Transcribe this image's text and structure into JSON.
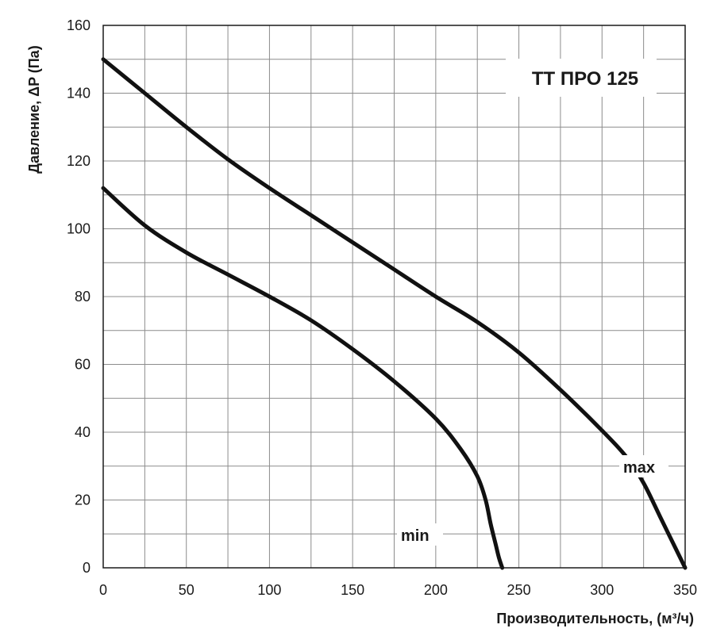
{
  "chart_data": {
    "type": "line",
    "title": "TT ПРО 125",
    "xlabel": "Производительность, (м³/ч)",
    "ylabel": "Давление, ΔP (Па)",
    "xlim": [
      0,
      350
    ],
    "ylim": [
      0,
      160
    ],
    "x_ticks": [
      0,
      50,
      100,
      150,
      200,
      250,
      300,
      350
    ],
    "y_ticks": [
      0,
      20,
      40,
      60,
      80,
      100,
      120,
      140,
      160
    ],
    "grid": true,
    "series": [
      {
        "name": "max",
        "x": [
          0,
          25,
          50,
          75,
          100,
          125,
          150,
          175,
          200,
          225,
          250,
          275,
          300,
          315,
          325,
          335,
          345,
          350
        ],
        "y": [
          150,
          140,
          130,
          120.5,
          112,
          104,
          96,
          88,
          80,
          72.5,
          63.5,
          52.5,
          40.5,
          32.5,
          25,
          15,
          5,
          0
        ]
      },
      {
        "name": "min",
        "x": [
          0,
          25,
          50,
          75,
          100,
          125,
          150,
          175,
          200,
          215,
          225,
          230,
          233,
          236,
          238,
          240
        ],
        "y": [
          112,
          101,
          93,
          86.5,
          80,
          73,
          64.5,
          55,
          44,
          35,
          27,
          20,
          13,
          7,
          3,
          0
        ]
      }
    ],
    "colors": {
      "line": "#111111",
      "grid": "#8c8c8c",
      "axis": "#1a1a1a"
    }
  }
}
